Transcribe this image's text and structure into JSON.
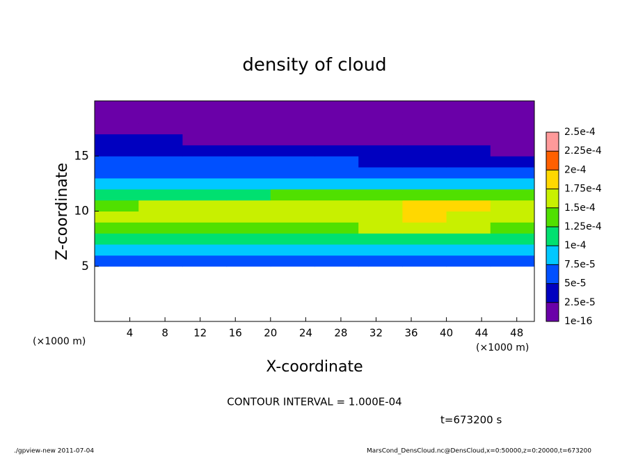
{
  "chart_data": {
    "type": "heatmap",
    "title": "density of cloud",
    "x_label": "X-coordinate",
    "y_label": "Z-coordinate",
    "x_unit": "(×1000 m)",
    "y_unit": "(×1000 m)",
    "xlim": [
      0,
      50
    ],
    "xticks": [
      4,
      8,
      12,
      16,
      20,
      24,
      28,
      32,
      36,
      40,
      44,
      48
    ],
    "ylim": [
      0,
      20
    ],
    "yticks": [
      5,
      10,
      15
    ],
    "x": [
      2.5,
      7.5,
      12.5,
      17.5,
      22.5,
      27.5,
      32.5,
      37.5,
      42.5,
      47.5
    ],
    "z": [
      0.5,
      1.5,
      2.5,
      3.5,
      4.5,
      5.5,
      6.5,
      7.5,
      8.5,
      9.5,
      10.5,
      11.5,
      12.5,
      13.5,
      14.5,
      15.5,
      16.5,
      17.5,
      18.5,
      19.5
    ],
    "values": [
      [
        null,
        null,
        null,
        null,
        null,
        null,
        null,
        null,
        null,
        null
      ],
      [
        null,
        null,
        null,
        null,
        null,
        null,
        null,
        null,
        null,
        null
      ],
      [
        null,
        null,
        null,
        null,
        null,
        null,
        null,
        null,
        null,
        null
      ],
      [
        null,
        null,
        null,
        null,
        null,
        null,
        null,
        null,
        null,
        null
      ],
      [
        null,
        null,
        null,
        null,
        null,
        null,
        null,
        null,
        null,
        null
      ],
      [
        6e-05,
        6e-05,
        5e-05,
        6e-05,
        6e-05,
        6e-05,
        6e-05,
        6e-05,
        6e-05,
        6e-05
      ],
      [
        9e-05,
        8e-05,
        8e-05,
        8e-05,
        8e-05,
        8e-05,
        8e-05,
        8e-05,
        9e-05,
        8e-05
      ],
      [
        0.00011,
        0.000105,
        0.00011,
        0.000105,
        0.000105,
        0.00011,
        0.00011,
        0.000115,
        0.00011,
        0.00011
      ],
      [
        0.000135,
        0.00014,
        0.000145,
        0.00014,
        0.00014,
        0.000145,
        0.00015,
        0.000155,
        0.00015,
        0.000145
      ],
      [
        0.00015,
        0.000165,
        0.00016,
        0.000155,
        0.00016,
        0.000165,
        0.00017,
        0.00018,
        0.00017,
        0.00016
      ],
      [
        0.00014,
        0.000155,
        0.000155,
        0.00015,
        0.000155,
        0.00016,
        0.000165,
        0.00018,
        0.000175,
        0.00016
      ],
      [
        0.000115,
        0.00012,
        0.00012,
        0.00012,
        0.000125,
        0.00013,
        0.00013,
        0.000135,
        0.000135,
        0.00013
      ],
      [
        9e-05,
        9e-05,
        9e-05,
        9e-05,
        9e-05,
        9.5e-05,
        9.5e-05,
        9.5e-05,
        9.5e-05,
        9.5e-05
      ],
      [
        7e-05,
        7e-05,
        7e-05,
        7e-05,
        7e-05,
        7e-05,
        7e-05,
        7e-05,
        6.5e-05,
        6.5e-05
      ],
      [
        5.5e-05,
        5e-05,
        5e-05,
        5e-05,
        5e-05,
        5e-05,
        4.5e-05,
        4e-05,
        4e-05,
        3.5e-05
      ],
      [
        4e-05,
        3.5e-05,
        3.5e-05,
        3.5e-05,
        3e-05,
        3e-05,
        3e-05,
        2.5e-05,
        2.5e-05,
        2e-05
      ],
      [
        3e-05,
        2.5e-05,
        2e-05,
        2e-05,
        2e-05,
        2e-05,
        1.5e-05,
        1.5e-05,
        1e-05,
        1e-05
      ],
      [
        1e-05,
        1e-05,
        1e-05,
        1e-05,
        1e-05,
        1e-05,
        1e-05,
        1e-05,
        5e-06,
        5e-06
      ],
      [
        1e-06,
        1e-06,
        1e-06,
        1e-06,
        1e-06,
        1e-06,
        1e-06,
        1e-06,
        1e-06,
        1e-06
      ],
      [
        1e-06,
        1e-06,
        1e-06,
        1e-06,
        1e-06,
        1e-06,
        1e-06,
        1e-06,
        1e-06,
        1e-06
      ]
    ],
    "levels": [
      {
        "value": 1e-16,
        "label": "1e-16"
      },
      {
        "value": 2.5e-05,
        "label": "2.5e-5"
      },
      {
        "value": 5e-05,
        "label": "5e-5"
      },
      {
        "value": 7.5e-05,
        "label": "7.5e-5"
      },
      {
        "value": 0.0001,
        "label": "1e-4"
      },
      {
        "value": 0.000125,
        "label": "1.25e-4"
      },
      {
        "value": 0.00015,
        "label": "1.5e-4"
      },
      {
        "value": 0.000175,
        "label": "1.75e-4"
      },
      {
        "value": 0.0002,
        "label": "2e-4"
      },
      {
        "value": 0.000225,
        "label": "2.25e-4"
      },
      {
        "value": 0.00025,
        "label": "2.5e-4"
      }
    ],
    "colors": [
      "#6a00a8",
      "#0000c0",
      "#0050ff",
      "#00c8ff",
      "#00e070",
      "#50e000",
      "#c8f000",
      "#ffd800",
      "#ff6000",
      "#ff9a9a"
    ],
    "contour_note": "CONTOUR INTERVAL = 1.000E-04",
    "time_label": "t=673200 s",
    "footer_left": "./gpview-new  2011-07-04",
    "footer_right": "MarsCond_DensCloud.nc@DensCloud,x=0:50000,z=0:20000,t=673200"
  }
}
